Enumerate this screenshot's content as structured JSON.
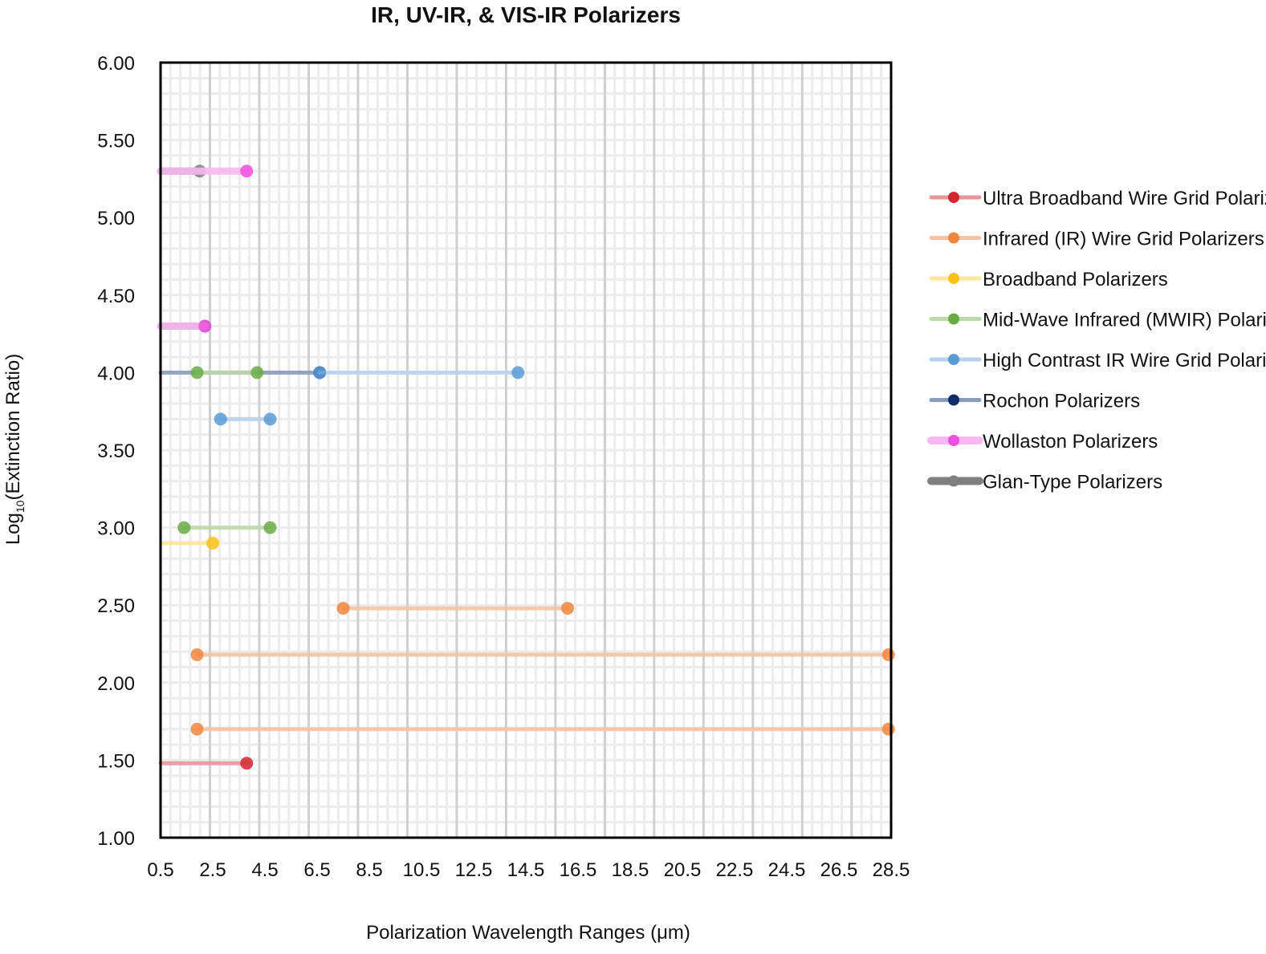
{
  "chart_data": {
    "type": "line",
    "title": "IR, UV-IR, & VIS-IR Polarizers",
    "xlabel": "Polarization Wavelength Ranges (μm)",
    "ylabel_main": "Log",
    "ylabel_sub": "10",
    "ylabel_rest": "(Extinction Ratio)",
    "xlim": [
      0.5,
      28.5
    ],
    "ylim": [
      1.0,
      6.0
    ],
    "xticks": [
      "0.5",
      "2.5",
      "4.5",
      "6.5",
      "8.5",
      "10.5",
      "12.5",
      "14.5",
      "16.5",
      "18.5",
      "20.5",
      "22.5",
      "24.5",
      "26.5",
      "28.5"
    ],
    "yticks": [
      "1.00",
      "1.50",
      "2.00",
      "2.50",
      "3.00",
      "3.50",
      "4.00",
      "4.50",
      "5.00",
      "5.50",
      "6.00"
    ],
    "grid": true,
    "legend_position": "right",
    "series": [
      {
        "name": "Ultra Broadband Wire Grid Polarizers",
        "line_color": "#e8959b",
        "marker_color": "#d0262e",
        "segments": [
          [
            [
              0.5,
              1.48
            ],
            [
              3.8,
              1.48
            ]
          ]
        ]
      },
      {
        "name": "Infrared (IR) Wire Grid Polarizers",
        "line_color": "#f6c3a2",
        "marker_color": "#ef8740",
        "segments": [
          [
            [
              1.9,
              1.7
            ],
            [
              28.4,
              1.7
            ]
          ],
          [
            [
              1.9,
              2.18
            ],
            [
              28.4,
              2.18
            ]
          ],
          [
            [
              7.5,
              2.48
            ],
            [
              16.1,
              2.48
            ]
          ]
        ]
      },
      {
        "name": "Broadband Polarizers",
        "line_color": "#fde59b",
        "marker_color": "#fbc21b",
        "segments": [
          [
            [
              0.5,
              2.9
            ],
            [
              2.5,
              2.9
            ]
          ]
        ]
      },
      {
        "name": "Mid-Wave Infrared (MWIR) Polarizers",
        "line_color": "#bcd9a9",
        "marker_color": "#6aab45",
        "segments": [
          [
            [
              1.4,
              3.0
            ],
            [
              4.7,
              3.0
            ]
          ],
          [
            [
              1.9,
              4.0
            ],
            [
              4.2,
              4.0
            ]
          ]
        ]
      },
      {
        "name": "High Contrast IR Wire Grid Polarizers",
        "line_color": "#b8d2ee",
        "marker_color": "#5b9bd6",
        "segments": [
          [
            [
              2.8,
              3.7
            ],
            [
              4.7,
              3.7
            ]
          ],
          [
            [
              6.6,
              4.0
            ],
            [
              14.2,
              4.0
            ]
          ]
        ]
      },
      {
        "name": "Rochon Polarizers",
        "line_color": "#8b9bbc",
        "marker_color": "#0f2c68",
        "segments": [
          [
            [
              0.5,
              4.0
            ],
            [
              6.6,
              4.0
            ]
          ]
        ]
      },
      {
        "name": "Wollaston Polarizers",
        "line_color": "#f9b8f1",
        "marker_color": "#f04fe0",
        "segments": [
          [
            [
              0.5,
              5.3
            ],
            [
              3.8,
              5.3
            ]
          ],
          [
            [
              0.5,
              4.3
            ],
            [
              2.2,
              4.3
            ]
          ]
        ]
      },
      {
        "name": "Glan-Type Polarizers",
        "line_color": "#7f7f7f",
        "marker_color": "#7f7f7f",
        "segments": [
          [
            [
              0.5,
              5.3
            ],
            [
              2.0,
              5.3
            ]
          ],
          [
            [
              0.5,
              4.3
            ],
            [
              2.2,
              4.3
            ]
          ]
        ]
      }
    ]
  }
}
